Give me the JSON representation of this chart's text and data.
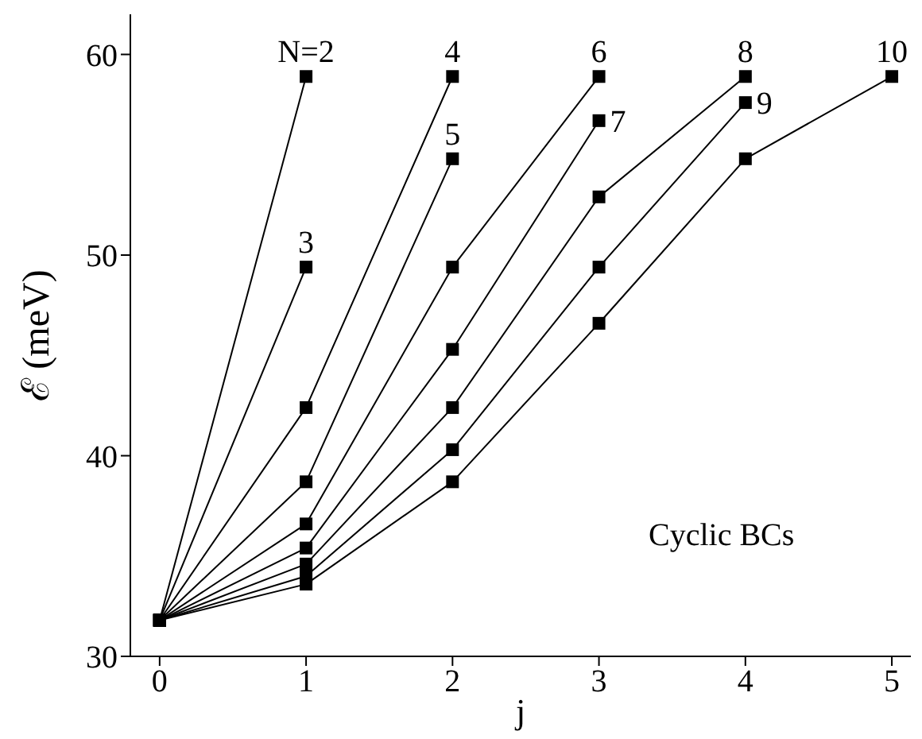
{
  "chart_data": {
    "type": "line",
    "xlabel": "j",
    "ylabel": "ℰ (meV)",
    "xlim": [
      -0.2,
      5.13
    ],
    "ylim": [
      30,
      62
    ],
    "xticks": [
      0,
      1,
      2,
      3,
      4,
      5
    ],
    "yticks": [
      30,
      40,
      50,
      60
    ],
    "marker": "square",
    "line_style": "solid",
    "grid": false,
    "legend": false,
    "annotations": [
      "Cyclic BCs"
    ],
    "series": [
      {
        "name": "N=2",
        "color": "#000000",
        "x": [
          0,
          1
        ],
        "values": [
          31.8,
          58.9
        ]
      },
      {
        "name": "3",
        "color": "#000000",
        "x": [
          0,
          1
        ],
        "values": [
          31.8,
          49.4
        ]
      },
      {
        "name": "4",
        "color": "#000000",
        "x": [
          0,
          1,
          2
        ],
        "values": [
          31.8,
          42.4,
          58.9
        ]
      },
      {
        "name": "5",
        "color": "#000000",
        "x": [
          0,
          1,
          2
        ],
        "values": [
          31.8,
          38.7,
          54.8
        ]
      },
      {
        "name": "6",
        "color": "#000000",
        "x": [
          0,
          1,
          2,
          3
        ],
        "values": [
          31.8,
          36.6,
          49.4,
          58.9
        ]
      },
      {
        "name": "7",
        "color": "#000000",
        "x": [
          0,
          1,
          2,
          3
        ],
        "values": [
          31.8,
          35.4,
          45.3,
          56.7
        ]
      },
      {
        "name": "8",
        "color": "#000000",
        "x": [
          0,
          1,
          2,
          3,
          4
        ],
        "values": [
          31.8,
          34.6,
          42.4,
          52.9,
          58.9
        ]
      },
      {
        "name": "9",
        "color": "#000000",
        "x": [
          0,
          1,
          2,
          3,
          4
        ],
        "values": [
          31.8,
          34.0,
          40.3,
          49.4,
          57.6
        ]
      },
      {
        "name": "10",
        "color": "#000000",
        "x": [
          0,
          1,
          2,
          3,
          4,
          5
        ],
        "values": [
          31.8,
          33.6,
          38.7,
          46.6,
          54.8,
          58.9
        ]
      }
    ]
  }
}
